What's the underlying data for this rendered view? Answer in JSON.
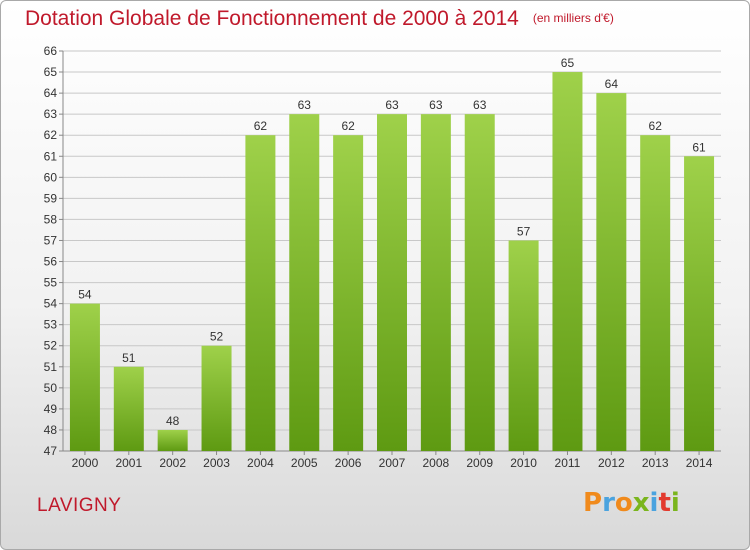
{
  "header": {
    "title": "Dotation Globale de Fonctionnement de 2000 à 2014",
    "unit": "(en milliers d'€)"
  },
  "footer": {
    "commune": "LAVIGNY",
    "logo_text": "Proxiti"
  },
  "colors": {
    "title": "#c0192b",
    "bar_top": "#9fd14a",
    "bar_bottom": "#5e9a12",
    "logo_letters": [
      "#f08a1c",
      "#4aa3df",
      "#f08a1c",
      "#7ab51d",
      "#4aa3df",
      "#e23a2e",
      "#7ab51d"
    ]
  },
  "chart_data": {
    "type": "bar",
    "categories": [
      "2000",
      "2001",
      "2002",
      "2003",
      "2004",
      "2005",
      "2006",
      "2007",
      "2008",
      "2009",
      "2010",
      "2011",
      "2012",
      "2013",
      "2014"
    ],
    "values": [
      54,
      51,
      48,
      52,
      62,
      63,
      62,
      63,
      63,
      63,
      57,
      65,
      64,
      62,
      61
    ],
    "title": "Dotation Globale de Fonctionnement de 2000 à 2014",
    "subtitle": "(en milliers d'€)",
    "xlabel": "",
    "ylabel": "",
    "ylim": [
      47,
      66
    ],
    "yticks": [
      47,
      48,
      49,
      50,
      51,
      52,
      53,
      54,
      55,
      56,
      57,
      58,
      59,
      60,
      61,
      62,
      63,
      64,
      65,
      66
    ],
    "grid": true,
    "legend": "none"
  }
}
